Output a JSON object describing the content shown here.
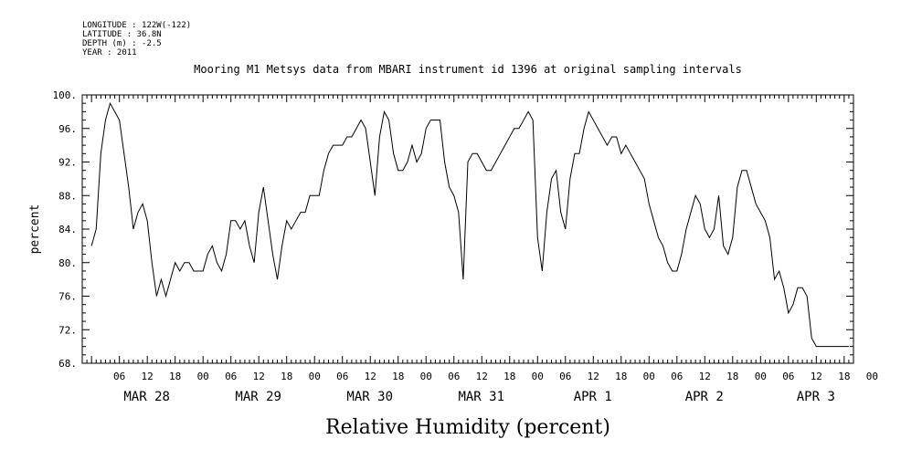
{
  "meta": {
    "longitude": "LONGITUDE : 122W(-122)",
    "latitude": "LATITUDE : 36.8N",
    "depth": "DEPTH (m) : -2.5",
    "year": "YEAR : 2011"
  },
  "chart_data": {
    "type": "line",
    "title": "Mooring M1 Metsys data from MBARI instrument id 1396 at original sampling intervals",
    "xlabel": "Relative Humidity (percent)",
    "ylabel": "percent",
    "ylim": [
      68,
      100
    ],
    "yticks": [
      68,
      72,
      76,
      80,
      84,
      88,
      92,
      96,
      100
    ],
    "ytick_labels": [
      "68.",
      "72.",
      "76.",
      "80.",
      "84.",
      "88.",
      "92.",
      "96.",
      "100."
    ],
    "xlim_hours_from_mar28_00": [
      -2,
      164
    ],
    "hour_tick_labels": [
      "06",
      "12",
      "18",
      "00",
      "06",
      "12",
      "18",
      "00",
      "06",
      "12",
      "18",
      "00",
      "06",
      "12",
      "18",
      "00",
      "06",
      "12",
      "18",
      "00",
      "06",
      "12",
      "18",
      "00",
      "06",
      "12",
      "18",
      "00"
    ],
    "day_labels": [
      "MAR 28",
      "MAR 29",
      "MAR 30",
      "MAR 31",
      "APR  1",
      "APR  2",
      "APR  3"
    ],
    "grid": false,
    "series": [
      {
        "x": [
          0,
          1,
          2,
          3,
          4,
          5,
          6,
          7,
          8,
          9,
          10,
          11,
          12,
          13,
          14,
          15,
          16,
          17,
          18,
          19,
          20,
          21,
          22,
          23,
          24,
          25,
          26,
          27,
          28,
          29,
          30,
          31,
          32,
          33,
          34,
          35,
          36,
          37,
          38,
          39,
          40,
          41,
          42,
          43,
          44,
          45,
          46,
          47,
          48,
          49,
          50,
          51,
          52,
          53,
          54,
          55,
          56,
          57,
          58,
          59,
          60,
          61,
          62,
          63,
          64,
          65,
          66,
          67,
          68,
          69,
          70,
          71,
          72,
          73,
          74,
          75,
          76,
          77,
          78,
          79,
          80,
          81,
          82,
          83,
          84,
          85,
          86,
          87,
          88,
          89,
          90,
          91,
          92,
          93,
          94,
          95,
          96,
          97,
          98,
          99,
          100,
          101,
          102,
          103,
          104,
          105,
          106,
          107,
          108,
          109,
          110,
          111,
          112,
          113,
          114,
          115,
          116,
          117,
          118,
          119,
          120,
          121,
          122,
          123,
          124,
          125,
          126,
          127,
          128,
          129,
          130,
          131,
          132,
          133,
          134,
          135,
          136,
          137,
          138,
          139,
          140,
          141,
          142,
          143,
          144,
          145,
          146,
          147,
          148,
          149,
          150,
          151,
          152,
          153,
          154,
          155,
          156,
          157,
          158,
          159,
          160,
          161,
          162,
          163
        ],
        "y": [
          82,
          84,
          93,
          97,
          99,
          98,
          97,
          93,
          89,
          84,
          86,
          87,
          85,
          80,
          76,
          78,
          76,
          78,
          80,
          79,
          80,
          80,
          79,
          79,
          79,
          81,
          82,
          80,
          79,
          81,
          85,
          85,
          84,
          85,
          82,
          80,
          86,
          89,
          85,
          81,
          78,
          82,
          85,
          84,
          85,
          86,
          86,
          88,
          88,
          88,
          91,
          93,
          94,
          94,
          94,
          95,
          95,
          96,
          97,
          96,
          92,
          88,
          95,
          98,
          97,
          93,
          91,
          91,
          92,
          94,
          92,
          93,
          96,
          97,
          97,
          97,
          92,
          89,
          88,
          86,
          78,
          92,
          93,
          93,
          92,
          91,
          91,
          92,
          93,
          94,
          95,
          96,
          96,
          97,
          98,
          97,
          83,
          79,
          86,
          90,
          91,
          86,
          84,
          90,
          93,
          93,
          96,
          98,
          97,
          96,
          95,
          94,
          95,
          95,
          93,
          94,
          93,
          92,
          91,
          90,
          87,
          85,
          83,
          82,
          80,
          79,
          79,
          81,
          84,
          86,
          88,
          87,
          84,
          83,
          84,
          88,
          82,
          81,
          83,
          89,
          91,
          91,
          89,
          87,
          86,
          85,
          83,
          78,
          79,
          77,
          74,
          75,
          77,
          77,
          76,
          71,
          70,
          70,
          70,
          70,
          70,
          70,
          70,
          70
        ]
      }
    ]
  }
}
